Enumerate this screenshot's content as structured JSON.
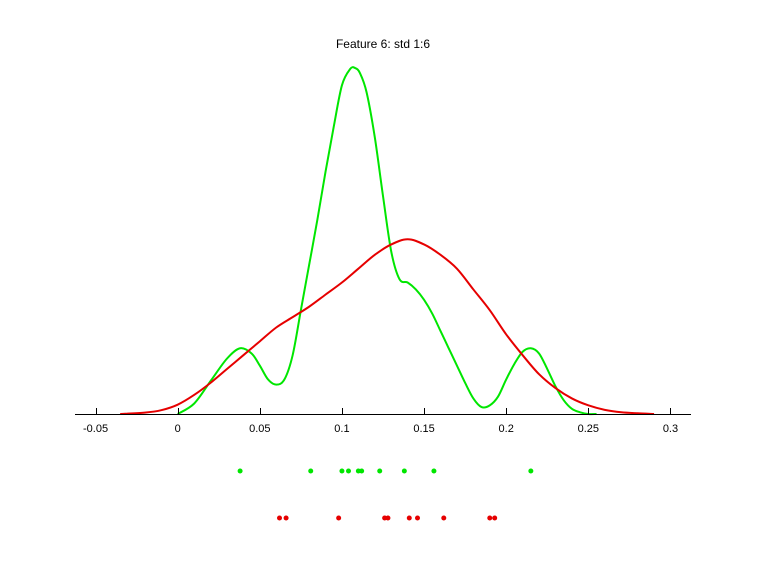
{
  "chart_data": {
    "type": "line",
    "title": "Feature 6: std 1:6",
    "xlabel": "",
    "ylabel": "",
    "xlim": [
      -0.0625,
      0.3125
    ],
    "ylim": [
      0,
      1
    ],
    "grid": false,
    "x_ticks": [
      "-0.05",
      "0",
      "0.05",
      "0.1",
      "0.15",
      "0.2",
      "0.25",
      "0.3"
    ],
    "x_tick_values": [
      -0.05,
      0,
      0.05,
      0.1,
      0.15,
      0.2,
      0.25,
      0.3
    ],
    "series": [
      {
        "color": "#00e600",
        "x": [
          0.0,
          0.01,
          0.02,
          0.03,
          0.038,
          0.045,
          0.05,
          0.055,
          0.06,
          0.065,
          0.07,
          0.075,
          0.08,
          0.085,
          0.09,
          0.095,
          0.1,
          0.105,
          0.108,
          0.111,
          0.115,
          0.12,
          0.125,
          0.13,
          0.135,
          0.14,
          0.145,
          0.15,
          0.155,
          0.16,
          0.165,
          0.17,
          0.175,
          0.18,
          0.185,
          0.19,
          0.195,
          0.2,
          0.205,
          0.21,
          0.215,
          0.22,
          0.225,
          0.23,
          0.235,
          0.24,
          0.245,
          0.25,
          0.255
        ],
        "y": [
          0.0,
          0.03,
          0.095,
          0.16,
          0.19,
          0.175,
          0.14,
          0.1,
          0.085,
          0.1,
          0.17,
          0.3,
          0.43,
          0.56,
          0.7,
          0.83,
          0.95,
          0.997,
          1.0,
          0.985,
          0.93,
          0.8,
          0.63,
          0.47,
          0.39,
          0.38,
          0.36,
          0.33,
          0.29,
          0.24,
          0.19,
          0.14,
          0.09,
          0.045,
          0.02,
          0.025,
          0.05,
          0.1,
          0.145,
          0.18,
          0.19,
          0.175,
          0.13,
          0.08,
          0.04,
          0.015,
          0.005,
          0.0,
          0.0
        ]
      },
      {
        "color": "#e60000",
        "x": [
          -0.035,
          -0.02,
          -0.01,
          0.0,
          0.01,
          0.02,
          0.03,
          0.04,
          0.05,
          0.06,
          0.07,
          0.08,
          0.09,
          0.1,
          0.11,
          0.12,
          0.13,
          0.14,
          0.15,
          0.16,
          0.17,
          0.18,
          0.19,
          0.2,
          0.21,
          0.22,
          0.23,
          0.24,
          0.25,
          0.26,
          0.27,
          0.28,
          0.29
        ],
        "y": [
          0.0,
          0.004,
          0.011,
          0.027,
          0.055,
          0.09,
          0.13,
          0.17,
          0.21,
          0.25,
          0.28,
          0.31,
          0.345,
          0.38,
          0.42,
          0.46,
          0.49,
          0.505,
          0.49,
          0.46,
          0.42,
          0.36,
          0.3,
          0.23,
          0.17,
          0.115,
          0.075,
          0.045,
          0.025,
          0.012,
          0.005,
          0.002,
          0.0
        ]
      }
    ],
    "rug": [
      {
        "color": "#00e600",
        "values": [
          0.038,
          0.081,
          0.1,
          0.104,
          0.11,
          0.112,
          0.123,
          0.138,
          0.156,
          0.215
        ]
      },
      {
        "color": "#e60000",
        "values": [
          0.062,
          0.066,
          0.098,
          0.126,
          0.128,
          0.141,
          0.146,
          0.162,
          0.19,
          0.193
        ]
      }
    ]
  }
}
